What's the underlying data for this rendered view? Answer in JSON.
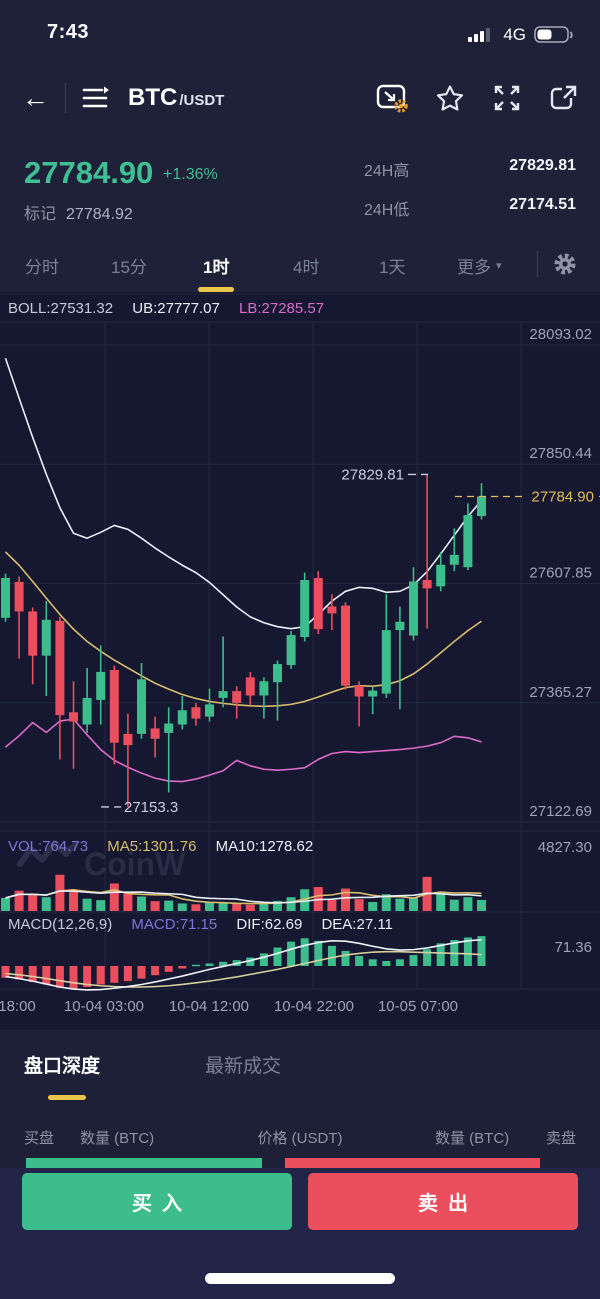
{
  "status_bar": {
    "time": "7:43",
    "network": "4G",
    "battery_pct": 50
  },
  "header": {
    "pair_base": "BTC",
    "pair_quote": "/USDT"
  },
  "ticker": {
    "last_price": "27784.90",
    "change_pct": "+1.36%",
    "mark_label": "标记",
    "mark_price": "27784.92",
    "high_label": "24H高",
    "high_value": "27829.81",
    "low_label": "24H低",
    "low_value": "27174.51"
  },
  "intervals": {
    "items": [
      "分时",
      "15分",
      "1时",
      "4时",
      "1天"
    ],
    "active": "1时",
    "more_label": "更多"
  },
  "indicators": {
    "boll": "BOLL:27531.32",
    "ub": "UB:27777.07",
    "lb": "LB:27285.57",
    "vol": "VOL:764.73",
    "vol_ma5": "MA5:1301.76",
    "vol_ma10": "MA10:1278.62",
    "macd_params": "MACD(12,26,9)",
    "macd": "MACD:71.15",
    "dif": "DIF:62.69",
    "dea": "DEA:27.11"
  },
  "watermark": "CoinW",
  "chart_data": {
    "type": "candlestick+volume+macd",
    "price_axis": [
      28093.02,
      27850.44,
      27607.85,
      27365.27,
      27122.69
    ],
    "time_axis": [
      "18:00",
      "10-04 03:00",
      "10-04 12:00",
      "10-04 22:00",
      "10-05 07:00"
    ],
    "vol_axis_max": 4827.3,
    "macd_axis_max": 71.36,
    "annotations": {
      "high": "27829.81",
      "low": "27153.3",
      "last": "27784.90",
      "last_value": 27784.9
    },
    "candles": [
      [
        27538,
        27619,
        27628,
        27530
      ],
      [
        27611,
        27551,
        27622,
        27455
      ],
      [
        27551,
        27461,
        27559,
        27403
      ],
      [
        27461,
        27534,
        27572,
        27379
      ],
      [
        27532,
        27340,
        27540,
        27250
      ],
      [
        27346,
        27327,
        27409,
        27231
      ],
      [
        27321,
        27375,
        27436,
        27304
      ],
      [
        27371,
        27428,
        27482,
        27321
      ],
      [
        27432,
        27284,
        27441,
        27240
      ],
      [
        27302,
        27279,
        27343,
        27153.3
      ],
      [
        27302,
        27413,
        27446,
        27292
      ],
      [
        27313,
        27292,
        27337,
        27254
      ],
      [
        27304,
        27323,
        27356,
        27183
      ],
      [
        27321,
        27350,
        27379,
        27311
      ],
      [
        27356,
        27333,
        27365,
        27319
      ],
      [
        27337,
        27362,
        27394,
        27327
      ],
      [
        27375,
        27389,
        27500,
        27356
      ],
      [
        27389,
        27365,
        27399,
        27333
      ],
      [
        27417,
        27380,
        27428,
        27360
      ],
      [
        27380,
        27409,
        27417,
        27333
      ],
      [
        27407,
        27444,
        27451,
        27329
      ],
      [
        27442,
        27503,
        27511,
        27434
      ],
      [
        27499,
        27615,
        27630,
        27490
      ],
      [
        27619,
        27515,
        27633,
        27505
      ],
      [
        27561,
        27547,
        27586,
        27513
      ],
      [
        27563,
        27400,
        27570,
        27392
      ],
      [
        27400,
        27378,
        27409,
        27317
      ],
      [
        27378,
        27390,
        27398,
        27342
      ],
      [
        27384,
        27513,
        27586,
        27375
      ],
      [
        27513,
        27530,
        27561,
        27352
      ],
      [
        27502,
        27612,
        27641,
        27492
      ],
      [
        27615,
        27598,
        27829.81,
        27516
      ],
      [
        27602,
        27646,
        27672,
        27592
      ],
      [
        27646,
        27666,
        27720,
        27633
      ],
      [
        27641,
        27747,
        27771,
        27635
      ],
      [
        27745,
        27784.9,
        27812,
        27738
      ]
    ],
    "volumes": [
      900,
      1400,
      1150,
      950,
      2500,
      1300,
      850,
      750,
      1900,
      1250,
      1000,
      680,
      720,
      520,
      460,
      600,
      560,
      510,
      430,
      490,
      700,
      950,
      1500,
      1650,
      760,
      1550,
      820,
      620,
      1150,
      850,
      950,
      2350,
      1250,
      780,
      950,
      764.73
    ],
    "boll_upper": [
      28066,
      27985,
      27905,
      27830,
      27762,
      27710,
      27700,
      27712,
      27726,
      27718,
      27700,
      27680,
      27662,
      27645,
      27630,
      27610,
      27585,
      27560,
      27540,
      27528,
      27520,
      27516,
      27520,
      27545,
      27572,
      27592,
      27600,
      27598,
      27590,
      27592,
      27605,
      27632,
      27668,
      27706,
      27744,
      27777.07
    ],
    "boll_mid": [
      27672,
      27645,
      27612,
      27578,
      27545,
      27515,
      27490,
      27470,
      27452,
      27436,
      27420,
      27405,
      27393,
      27382,
      27374,
      27368,
      27364,
      27361,
      27359,
      27358,
      27359,
      27362,
      27368,
      27377,
      27387,
      27396,
      27400,
      27399,
      27402,
      27410,
      27424,
      27444,
      27467,
      27490,
      27512,
      27531.32
    ],
    "boll_lower": [
      27275,
      27298,
      27325,
      27305,
      27328,
      27332,
      27300,
      27270,
      27248,
      27234,
      27222,
      27212,
      27206,
      27205,
      27210,
      27218,
      27227,
      27248,
      27237,
      27230,
      27228,
      27230,
      27233,
      27250,
      27262,
      27266,
      27264,
      27266,
      27268,
      27270,
      27273,
      27277,
      27284,
      27297,
      27294,
      27285.57
    ],
    "macd_hist": [
      -28,
      -32,
      -38,
      -44,
      -52,
      -56,
      -50,
      -44,
      -40,
      -36,
      -30,
      -22,
      -14,
      -6,
      3,
      6,
      10,
      14,
      20,
      30,
      44,
      58,
      66,
      60,
      48,
      36,
      24,
      16,
      12,
      16,
      26,
      40,
      54,
      62,
      68,
      71.15
    ],
    "dif_line": [
      -25,
      -30,
      -36,
      -43,
      -50,
      -55,
      -57,
      -56,
      -53,
      -49,
      -44,
      -38,
      -31,
      -24,
      -16,
      -8,
      -1,
      6,
      13,
      21,
      30,
      40,
      49,
      56,
      60,
      59,
      54,
      47,
      41,
      38,
      39,
      43,
      49,
      55,
      60,
      62.69
    ],
    "dea_line": [
      -18,
      -21,
      -25,
      -30,
      -35,
      -40,
      -44,
      -47,
      -49,
      -50,
      -50,
      -49,
      -47,
      -44,
      -40,
      -36,
      -31,
      -26,
      -20,
      -14,
      -8,
      -1,
      6,
      13,
      20,
      26,
      30,
      33,
      34,
      34,
      33,
      32,
      31,
      30,
      29,
      27.11
    ]
  },
  "depth_section": {
    "tabs": [
      "盘口深度",
      "最新成交"
    ],
    "active": "盘口深度",
    "columns": [
      "买盘",
      "数量 (BTC)",
      "价格 (USDT)",
      "数量 (BTC)",
      "卖盘"
    ]
  },
  "actions": {
    "buy": "买入",
    "sell": "卖出"
  },
  "colors": {
    "up": "#3DBD8C",
    "down": "#EB4E5C",
    "accent_yellow": "#E9C64A",
    "price_yellow": "#E3BC5A",
    "boll_upper": "#E8EEF7",
    "boll_mid": "#D9BD6E",
    "boll_lower": "#DC6BC8",
    "dif": "#F0F3FA",
    "dea": "#D8CFA0",
    "grid": "#232842",
    "axis_text": "#9CA3BB",
    "chart_bg": "#151830",
    "annotation": "#C9CEDD"
  }
}
